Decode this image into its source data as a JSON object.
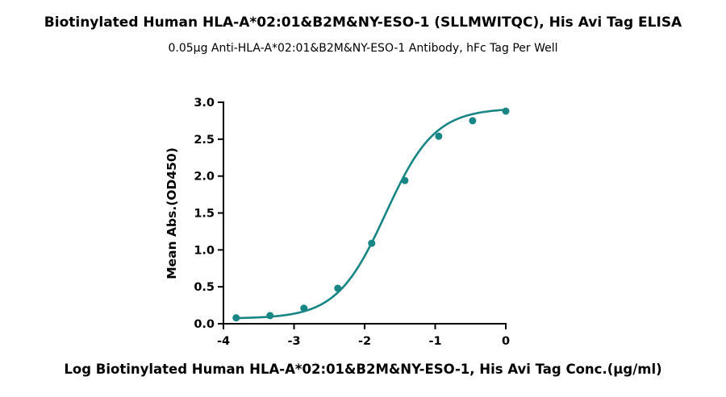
{
  "chart_data": {
    "type": "scatter",
    "title": "Biotinylated Human HLA-A*02:01&B2M&NY-ESO-1 (SLLMWITQC), His Avi Tag ELISA",
    "subtitle": "0.05µg Anti-HLA-A*02:01&B2M&NY-ESO-1 Antibody, hFc Tag Per Well",
    "xlabel": "Log Biotinylated Human HLA-A*02:01&B2M&NY-ESO-1, His Avi Tag Conc.(µg/ml)",
    "ylabel": "Mean Abs.(OD450)",
    "xlim": [
      -4,
      0
    ],
    "ylim": [
      0,
      3.0
    ],
    "xticks": [
      -4,
      -3,
      -2,
      -1,
      0
    ],
    "xtick_labels": [
      "-4",
      "-3",
      "-2",
      "-1",
      "0"
    ],
    "yticks": [
      0,
      0.5,
      1.0,
      1.5,
      2.0,
      2.5,
      3.0
    ],
    "ytick_labels": [
      "0.0",
      "0.5",
      "1.0",
      "1.5",
      "2.0",
      "2.5",
      "3.0"
    ],
    "grid": false,
    "color": "#1a8585",
    "series": [
      {
        "x": [
          -3.82,
          -3.34,
          -2.86,
          -2.38,
          -1.9,
          -1.43,
          -0.95,
          -0.47,
          0.0
        ],
        "y": [
          0.08,
          0.11,
          0.21,
          0.48,
          1.09,
          1.94,
          2.54,
          2.75,
          2.88
        ]
      }
    ],
    "fit": {
      "model": "4PL",
      "bottom": 0.07,
      "top": 2.92,
      "log_ec50": -1.7,
      "hill_slope": 1.25
    }
  }
}
